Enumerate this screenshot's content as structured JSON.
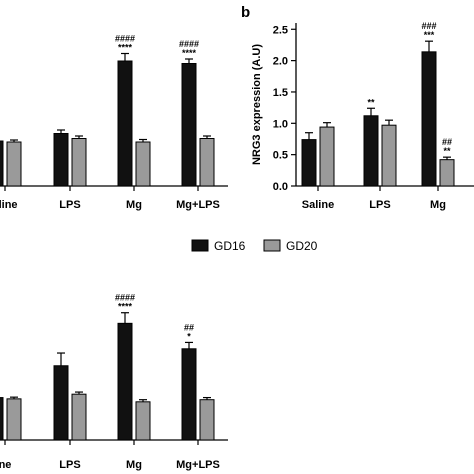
{
  "panel_b_label": "b",
  "legend": [
    {
      "name": "GD16",
      "color": "#111111"
    },
    {
      "name": "GD20",
      "color": "#9a9a9a"
    }
  ],
  "chart_data": [
    {
      "type": "bar",
      "panel": "left (cropped)",
      "categories": [
        "Saline",
        "LPS",
        "Mg",
        "Mg+LPS"
      ],
      "category_labels": [
        "aline",
        "LPS",
        "Mg",
        "Mg+LPS"
      ],
      "series": [
        {
          "name": "GD16",
          "values": [
            0.9,
            1.05,
            2.5,
            2.45
          ],
          "errors": [
            0.05,
            0.07,
            0.15,
            0.09
          ]
        },
        {
          "name": "GD20",
          "values": [
            0.88,
            0.95,
            0.88,
            0.95
          ],
          "errors": [
            0.04,
            0.05,
            0.05,
            0.05
          ]
        }
      ],
      "annotations": {
        "GD16": [
          "",
          "",
          "####\n****",
          "####\n****"
        ],
        "GD20": [
          "",
          "",
          "",
          ""
        ]
      },
      "ylabel": "",
      "ylim": [
        0,
        3
      ]
    },
    {
      "type": "bar",
      "panel": "b",
      "categories": [
        "Saline",
        "LPS",
        "Mg"
      ],
      "series": [
        {
          "name": "GD16",
          "values": [
            0.74,
            1.12,
            2.14
          ],
          "errors": [
            0.11,
            0.12,
            0.17
          ]
        },
        {
          "name": "GD20",
          "values": [
            0.94,
            0.97,
            0.42
          ],
          "errors": [
            0.07,
            0.08,
            0.04
          ]
        }
      ],
      "annotations": {
        "GD16": [
          "",
          "**",
          "###\n***"
        ],
        "GD20": [
          "",
          "",
          "##\n**"
        ]
      },
      "ylabel": "NRG3 expression (A.U)",
      "yticks": [
        0.0,
        0.5,
        1.0,
        1.5,
        2.0,
        2.5
      ],
      "yticklabels": [
        "0.0",
        "0.5",
        "1.0",
        "1.5",
        "2.0",
        "2.5"
      ],
      "ylim": [
        0,
        2.6
      ]
    },
    {
      "type": "bar",
      "panel": "bottom (cropped)",
      "categories": [
        "Saline",
        "LPS",
        "Mg",
        "Mg+LPS"
      ],
      "category_labels": [
        "ne",
        "LPS",
        "Mg",
        "Mg+LPS"
      ],
      "series": [
        {
          "name": "GD16",
          "values": [
            1.0,
            1.75,
            2.75,
            2.15
          ],
          "errors": [
            0.05,
            0.3,
            0.25,
            0.15
          ]
        },
        {
          "name": "GD20",
          "values": [
            0.97,
            1.08,
            0.9,
            0.95
          ],
          "errors": [
            0.04,
            0.05,
            0.05,
            0.05
          ]
        }
      ],
      "annotations": {
        "GD16": [
          "",
          "",
          "####\n****",
          "##\n*"
        ],
        "GD20": [
          "",
          "",
          "",
          ""
        ]
      },
      "ylabel": "",
      "ylim": [
        0,
        3.3
      ]
    }
  ]
}
